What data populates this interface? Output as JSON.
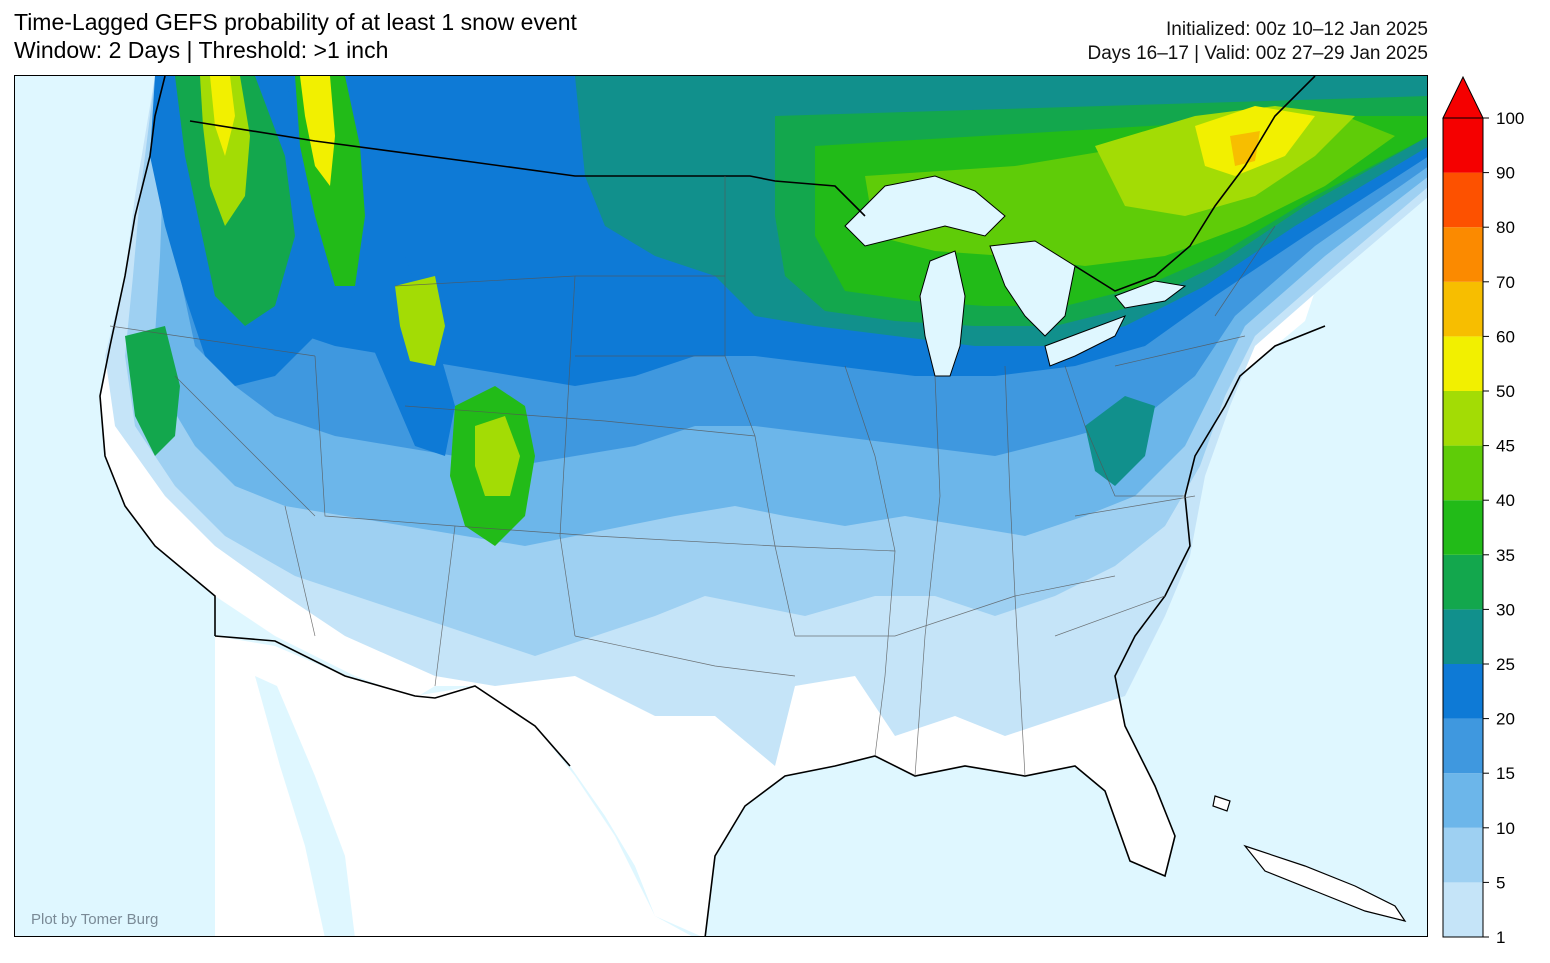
{
  "title": {
    "line1": "Time-Lagged GEFS probability of at least 1 snow event",
    "line2": "Window: 2 Days | Threshold: >1 inch"
  },
  "info": {
    "initialized": "Initialized: 00z 10–12 Jan 2025",
    "valid": "Days 16–17 | Valid: 00z 27–29 Jan 2025"
  },
  "credit": "Plot by Tomer Burg",
  "colorbar": {
    "levels": [
      "1",
      "5",
      "10",
      "15",
      "20",
      "25",
      "30",
      "35",
      "40",
      "45",
      "50",
      "60",
      "70",
      "80",
      "90",
      "100"
    ],
    "colors": [
      "#c5e4f8",
      "#9ed0f2",
      "#6cb6ea",
      "#3f98df",
      "#0e7ad6",
      "#11908c",
      "#13a74d",
      "#22bb18",
      "#5fcc08",
      "#a3dc05",
      "#f2f000",
      "#f7be00",
      "#fb8a00",
      "#fd5100",
      "#f50000"
    ],
    "extend_color": "#f50000"
  },
  "colors": {
    "ocean": "#dff7ff",
    "land_none": "#ffffff"
  }
}
